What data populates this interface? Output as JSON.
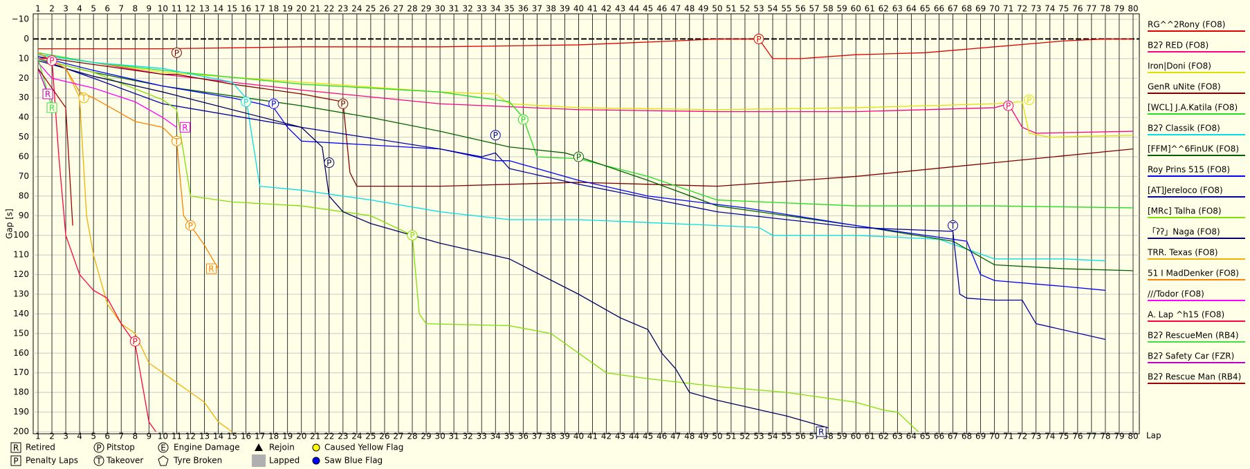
{
  "chart_data": {
    "type": "line",
    "y_label": "Gap [s]",
    "x_label": "Lap",
    "xlim": [
      1,
      80
    ],
    "xticks": [
      1,
      2,
      3,
      4,
      5,
      6,
      7,
      8,
      9,
      10,
      11,
      12,
      13,
      14,
      15,
      16,
      17,
      18,
      19,
      20,
      21,
      22,
      23,
      24,
      25,
      26,
      27,
      28,
      29,
      30,
      31,
      32,
      33,
      34,
      35,
      36,
      37,
      38,
      39,
      40,
      41,
      42,
      43,
      44,
      45,
      46,
      47,
      48,
      49,
      50,
      51,
      52,
      53,
      54,
      55,
      56,
      57,
      58,
      59,
      60,
      61,
      62,
      63,
      64,
      65,
      66,
      67,
      68,
      69,
      70,
      71,
      72,
      73,
      74,
      75,
      76,
      77,
      78,
      79,
      80
    ],
    "ylim": [
      -10,
      200
    ],
    "invert_y": true,
    "yticks": [
      {
        "value": -10,
        "label": "−10"
      },
      0,
      10,
      20,
      30,
      40,
      50,
      60,
      70,
      80,
      90,
      100,
      110,
      120,
      130,
      140,
      150,
      160,
      170,
      180,
      190,
      200
    ],
    "grid": true,
    "zero_line": true,
    "series": [
      {
        "name": "RG^^2Rony (FO8)",
        "color": "#e00000",
        "x": [
          1,
          5,
          10,
          20,
          30,
          40,
          47,
          50,
          53,
          54,
          56,
          60,
          65,
          70,
          75,
          78,
          80
        ],
        "values": [
          5,
          5,
          5,
          4,
          4,
          3,
          1,
          0,
          0,
          10,
          10,
          8,
          7,
          4,
          1,
          0,
          0
        ]
      },
      {
        "name": "B2ʔ RED (FO8)",
        "color": "#ff0080",
        "x": [
          1,
          2,
          5,
          10,
          20,
          30,
          40,
          50,
          60,
          70,
          71,
          72,
          73,
          80
        ],
        "values": [
          8,
          9,
          12,
          18,
          26,
          33,
          36,
          37,
          37,
          35,
          33,
          45,
          48,
          47
        ]
      },
      {
        "name": "Iron|Doni (FO8)",
        "color": "#e0e000",
        "x": [
          1,
          5,
          10,
          20,
          30,
          34,
          35,
          40,
          50,
          60,
          70,
          72,
          72.5,
          74,
          80
        ],
        "values": [
          8,
          12,
          17,
          22,
          27,
          28,
          33,
          35,
          36,
          35,
          33,
          32,
          48,
          50,
          49
        ]
      },
      {
        "name": "GenR uNite (FO8)",
        "color": "#800000",
        "x": [
          1,
          5,
          10,
          11,
          15,
          20,
          23,
          23.5,
          24,
          30,
          40,
          50,
          60,
          70,
          80
        ],
        "values": [
          9,
          13,
          18,
          18,
          23,
          28,
          32,
          68,
          75,
          75,
          73,
          75,
          70,
          63,
          56
        ]
      },
      {
        "name": "[WCL] J.A.Katila (FO8)",
        "color": "#20e020",
        "x": [
          1,
          5,
          10,
          20,
          30,
          35,
          36,
          37,
          40,
          45,
          50,
          60,
          70,
          80
        ],
        "values": [
          7,
          12,
          16,
          23,
          27,
          32,
          40,
          60,
          61,
          70,
          82,
          85,
          85,
          86
        ]
      },
      {
        "name": "B2ʔ Classik (FO8)",
        "color": "#00e0e0",
        "x": [
          1,
          5,
          10,
          15,
          16,
          17,
          20,
          25,
          30,
          35,
          40,
          50,
          53,
          54,
          60,
          66,
          70,
          75,
          78
        ],
        "values": [
          8,
          12,
          15,
          22,
          30,
          75,
          77,
          82,
          88,
          92,
          92,
          95,
          96,
          100,
          100,
          102,
          112,
          112,
          113
        ]
      },
      {
        "name": "[FFM]^^6FinUK (FO8)",
        "color": "#006000",
        "x": [
          1,
          5,
          10,
          20,
          25,
          30,
          35,
          39,
          40,
          45,
          50,
          60,
          67,
          70,
          75,
          80
        ],
        "values": [
          10,
          17,
          24,
          34,
          40,
          47,
          55,
          58,
          60,
          72,
          85,
          95,
          103,
          115,
          117,
          118
        ]
      },
      {
        "name": "Roy Prins 515 (FO8)",
        "color": "#0000ff",
        "x": [
          1,
          5,
          10,
          15,
          17,
          18,
          19,
          20,
          30,
          34,
          35,
          40,
          45,
          52,
          60,
          68,
          69,
          70,
          75,
          78
        ],
        "values": [
          9,
          16,
          24,
          30,
          33,
          35,
          45,
          52,
          56,
          62,
          62,
          72,
          80,
          86,
          95,
          103,
          120,
          123,
          126,
          128
        ]
      },
      {
        "name": "[AT]Jereloco (FO8)",
        "color": "#0000a0",
        "x": [
          1,
          5,
          10,
          20,
          30,
          33,
          34,
          35,
          40,
          50,
          60,
          67,
          67.5,
          68,
          70,
          71,
          72,
          73,
          78
        ],
        "values": [
          10,
          20,
          33,
          45,
          56,
          60,
          58,
          66,
          74,
          88,
          96,
          98,
          130,
          132,
          133,
          133,
          133,
          145,
          153
        ]
      },
      {
        "name": "[MRc] Talha (FO8)",
        "color": "#80e000",
        "x": [
          1,
          5,
          10,
          11,
          12,
          15,
          20,
          25,
          28,
          28.5,
          29,
          35,
          38,
          40,
          42,
          45,
          50,
          55,
          60,
          62,
          63,
          64.5
        ],
        "values": [
          10,
          17,
          31,
          36,
          80,
          83,
          85,
          90,
          100,
          140,
          145,
          146,
          150,
          160,
          170,
          173,
          177,
          180,
          185,
          189,
          190,
          200
        ]
      },
      {
        "name": "「ʔʔ」Naga (FO8)",
        "color": "#000060",
        "x": [
          1,
          5,
          10,
          20,
          21.5,
          22,
          23,
          25,
          28,
          30,
          35,
          40,
          43,
          45,
          46,
          47,
          48,
          50,
          55,
          58
        ],
        "values": [
          11,
          19,
          27,
          45,
          55,
          80,
          88,
          94,
          100,
          104,
          112,
          130,
          142,
          148,
          160,
          168,
          180,
          184,
          192,
          198
        ]
      },
      {
        "name": "TRR. Texas (FO8)",
        "color": "#f0b000",
        "x": [
          1,
          3,
          4,
          4.5,
          5,
          6,
          7,
          8,
          9,
          10,
          12,
          13,
          14,
          15
        ],
        "values": [
          7,
          15,
          30,
          90,
          110,
          135,
          145,
          150,
          165,
          170,
          180,
          185,
          195,
          200
        ]
      },
      {
        "name": "51 I MadDenker (FO8)",
        "color": "#ff8000",
        "x": [
          1,
          3,
          4,
          5,
          7,
          8,
          10,
          11,
          11.5,
          12,
          13,
          14
        ],
        "values": [
          7,
          15,
          27,
          30,
          38,
          42,
          45,
          52,
          90,
          95,
          105,
          117
        ]
      },
      {
        "name": "///Todor (FO8)",
        "color": "#ff00ff",
        "x": [
          1,
          2,
          5,
          8,
          10,
          11
        ],
        "values": [
          12,
          20,
          25,
          32,
          40,
          45
        ]
      },
      {
        "name": "A. Lap ^h15 (FO8)",
        "color": "#ff0040",
        "x": [
          1,
          2,
          2.5,
          3,
          4,
          5,
          6,
          7,
          8,
          9,
          9.5
        ],
        "values": [
          10,
          10,
          60,
          100,
          120,
          128,
          132,
          145,
          155,
          195,
          200
        ]
      },
      {
        "name": "B2ʔ RescueMen (RB4)",
        "color": "#40e040",
        "x": [
          1,
          2
        ],
        "values": [
          10,
          35
        ]
      },
      {
        "name": "B2ʔ Safety Car (FZR)",
        "color": "#c000c0",
        "x": [
          1,
          1.7
        ],
        "values": [
          15,
          28
        ]
      },
      {
        "name": "B2ʔ Rescue Man (RB4)",
        "color": "#a00000",
        "x": [
          1,
          3,
          3.5
        ],
        "values": [
          15,
          35,
          95
        ]
      }
    ],
    "markers": [
      {
        "x": 53,
        "y": 0,
        "label": "P",
        "shape": "circle",
        "color": "#e00000"
      },
      {
        "x": 11,
        "y": 7,
        "label": "P",
        "shape": "circle",
        "color": "#800000"
      },
      {
        "x": 2,
        "y": 11,
        "label": "P",
        "shape": "circle",
        "color": "#ff0080"
      },
      {
        "x": 1.7,
        "y": 28,
        "label": "R",
        "shape": "square",
        "color": "#c000c0"
      },
      {
        "x": 2,
        "y": 35,
        "label": "R",
        "shape": "square",
        "color": "#40e040"
      },
      {
        "x": 4.3,
        "y": 30,
        "label": "T",
        "shape": "circle",
        "color": "#f0b000"
      },
      {
        "x": 16,
        "y": 32,
        "label": "P",
        "shape": "circle",
        "color": "#00e0e0"
      },
      {
        "x": 18,
        "y": 33,
        "label": "P",
        "shape": "circle",
        "color": "#0000ff"
      },
      {
        "x": 23,
        "y": 33,
        "label": "P",
        "shape": "circle",
        "color": "#800000"
      },
      {
        "x": 34,
        "y": 49,
        "label": "P",
        "shape": "circle",
        "color": "#0000a0"
      },
      {
        "x": 36,
        "y": 41,
        "label": "P",
        "shape": "circle",
        "color": "#20e020"
      },
      {
        "x": 22,
        "y": 63,
        "label": "P",
        "shape": "circle",
        "color": "#000060"
      },
      {
        "x": 40,
        "y": 60,
        "label": "P",
        "shape": "circle",
        "color": "#006000"
      },
      {
        "x": 11.6,
        "y": 45,
        "label": "R",
        "shape": "square",
        "color": "#ff00ff"
      },
      {
        "x": 11,
        "y": 52,
        "label": "T",
        "shape": "circle",
        "color": "#ff8000"
      },
      {
        "x": 12,
        "y": 95,
        "label": "P",
        "shape": "circle",
        "color": "#ff8000"
      },
      {
        "x": 13.5,
        "y": 117,
        "label": "R",
        "shape": "square",
        "color": "#ff8000"
      },
      {
        "x": 28,
        "y": 100,
        "label": "P",
        "shape": "circle",
        "color": "#80e000"
      },
      {
        "x": 71,
        "y": 34,
        "label": "P",
        "shape": "circle",
        "color": "#ff0080"
      },
      {
        "x": 72.5,
        "y": 31,
        "label": "P",
        "shape": "circle",
        "color": "#e0e000"
      },
      {
        "x": 67,
        "y": 95,
        "label": "T",
        "shape": "circle",
        "color": "#0000a0"
      },
      {
        "x": 8,
        "y": 154,
        "label": "P",
        "shape": "circle",
        "color": "#ff0040"
      },
      {
        "x": 57.5,
        "y": 200,
        "label": "R",
        "shape": "square",
        "color": "#000080"
      }
    ],
    "symbol_legend": [
      {
        "label": "Retired",
        "symbol": "R",
        "shape": "square"
      },
      {
        "label": "Pitstop",
        "symbol": "P",
        "shape": "circle"
      },
      {
        "label": "Engine Damage",
        "symbol": "E",
        "shape": "circle"
      },
      {
        "label": "Rejoin",
        "shape": "triangle"
      },
      {
        "label": "Caused Yellow Flag",
        "shape": "dot",
        "color": "#ffff00"
      },
      {
        "label": "Penalty Laps",
        "symbol": "P",
        "shape": "square"
      },
      {
        "label": "Takeover",
        "symbol": "T",
        "shape": "circle"
      },
      {
        "label": "Tyre Broken",
        "shape": "pentagon"
      },
      {
        "label": "Lapped",
        "shape": "block",
        "color": "#b0b0b0"
      },
      {
        "label": "Saw Blue Flag",
        "shape": "dot",
        "color": "#0000ff"
      }
    ]
  }
}
